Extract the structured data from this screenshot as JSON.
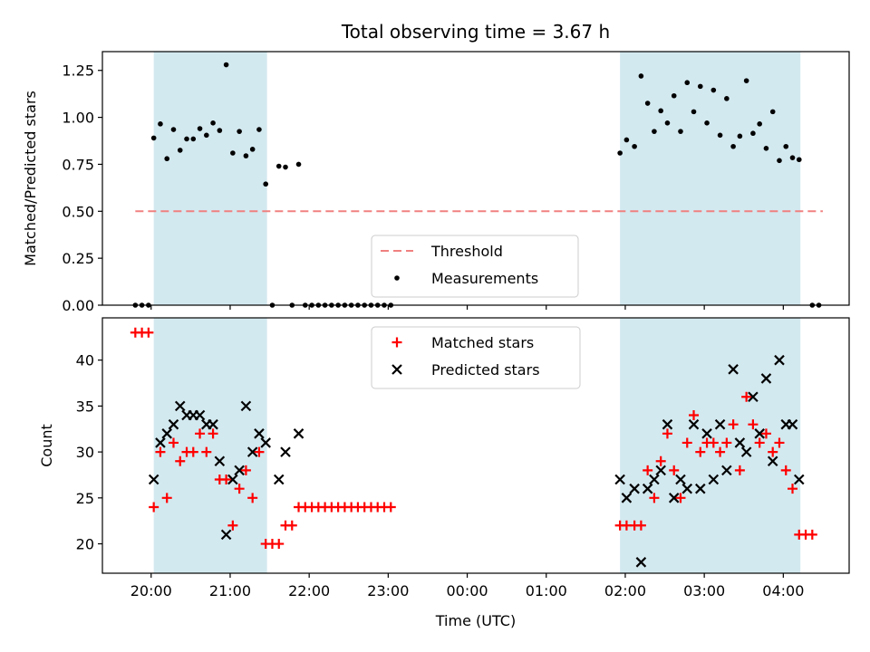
{
  "chart_data": [
    {
      "type": "scatter",
      "title": "Total observing time = 3.67 h",
      "ylabel": "Matched/Predicted stars",
      "xlabel": "",
      "ylim": [
        0,
        1.35
      ],
      "xlim": [
        "19:23",
        "04:50"
      ],
      "yticks": [
        "0.00",
        "0.25",
        "0.50",
        "0.75",
        "1.00",
        "1.25"
      ],
      "xtick_labels_visible": false,
      "shaded_intervals": [
        [
          "20:02",
          "21:28"
        ],
        [
          "01:56",
          "04:13"
        ]
      ],
      "shade_color": "#d3e9f0",
      "threshold": {
        "name": "Threshold",
        "value": 0.5,
        "x_range": [
          "19:48",
          "04:30"
        ],
        "color": "#f08080",
        "style": "dashed"
      },
      "series": [
        {
          "name": "Measurements",
          "color": "#000000",
          "marker": "dot",
          "points": [
            [
              "19:48",
              0.0
            ],
            [
              "19:53",
              0.0
            ],
            [
              "19:58",
              0.0
            ],
            [
              "20:02",
              0.89
            ],
            [
              "20:07",
              0.965
            ],
            [
              "20:12",
              0.78
            ],
            [
              "20:17",
              0.935
            ],
            [
              "20:22",
              0.825
            ],
            [
              "20:27",
              0.885
            ],
            [
              "20:32",
              0.885
            ],
            [
              "20:37",
              0.94
            ],
            [
              "20:42",
              0.905
            ],
            [
              "20:47",
              0.97
            ],
            [
              "20:52",
              0.93
            ],
            [
              "20:57",
              1.28
            ],
            [
              "21:02",
              0.81
            ],
            [
              "21:07",
              0.925
            ],
            [
              "21:12",
              0.795
            ],
            [
              "21:17",
              0.83
            ],
            [
              "21:22",
              0.935
            ],
            [
              "21:27",
              0.645
            ],
            [
              "21:32",
              0.0
            ],
            [
              "21:37",
              0.74
            ],
            [
              "21:42",
              0.735
            ],
            [
              "21:47",
              0.0
            ],
            [
              "21:52",
              0.75
            ],
            [
              "21:57",
              0.0
            ],
            [
              "22:02",
              0.0
            ],
            [
              "22:07",
              0.0
            ],
            [
              "22:12",
              0.0
            ],
            [
              "22:17",
              0.0
            ],
            [
              "22:22",
              0.0
            ],
            [
              "22:27",
              0.0
            ],
            [
              "22:32",
              0.0
            ],
            [
              "22:37",
              0.0
            ],
            [
              "22:42",
              0.0
            ],
            [
              "22:47",
              0.0
            ],
            [
              "22:52",
              0.0
            ],
            [
              "22:57",
              0.0
            ],
            [
              "23:02",
              0.0
            ],
            [
              "01:56",
              0.81
            ],
            [
              "02:01",
              0.88
            ],
            [
              "02:07",
              0.845
            ],
            [
              "02:12",
              1.22
            ],
            [
              "02:17",
              1.075
            ],
            [
              "02:22",
              0.925
            ],
            [
              "02:27",
              1.035
            ],
            [
              "02:32",
              0.97
            ],
            [
              "02:37",
              1.115
            ],
            [
              "02:42",
              0.925
            ],
            [
              "02:47",
              1.185
            ],
            [
              "02:52",
              1.03
            ],
            [
              "02:57",
              1.165
            ],
            [
              "03:02",
              0.97
            ],
            [
              "03:07",
              1.145
            ],
            [
              "03:12",
              0.905
            ],
            [
              "03:17",
              1.1
            ],
            [
              "03:22",
              0.845
            ],
            [
              "03:27",
              0.9
            ],
            [
              "03:32",
              1.195
            ],
            [
              "03:37",
              0.915
            ],
            [
              "03:42",
              0.965
            ],
            [
              "03:47",
              0.835
            ],
            [
              "03:52",
              1.03
            ],
            [
              "03:57",
              0.77
            ],
            [
              "04:02",
              0.845
            ],
            [
              "04:07",
              0.785
            ],
            [
              "04:12",
              0.775
            ],
            [
              "04:22",
              0.0
            ],
            [
              "04:27",
              0.0
            ]
          ]
        }
      ],
      "legend": {
        "position": "lower center",
        "entries": [
          "Threshold",
          "Measurements"
        ]
      }
    },
    {
      "type": "scatter",
      "title": "",
      "ylabel": "Count",
      "xlabel": "Time (UTC)",
      "ylim": [
        16.8,
        44.6
      ],
      "xlim": [
        "19:23",
        "04:50"
      ],
      "yticks": [
        "20",
        "25",
        "30",
        "35",
        "40"
      ],
      "xticks": [
        "20:00",
        "21:00",
        "22:00",
        "23:00",
        "00:00",
        "01:00",
        "02:00",
        "03:00",
        "04:00"
      ],
      "shaded_intervals": [
        [
          "20:02",
          "21:28"
        ],
        [
          "01:56",
          "04:13"
        ]
      ],
      "shade_color": "#d3e9f0",
      "series": [
        {
          "name": "Matched stars",
          "color": "#ff0000",
          "marker": "plus",
          "points": [
            [
              "19:48",
              43
            ],
            [
              "19:53",
              43
            ],
            [
              "19:58",
              43
            ],
            [
              "20:02",
              24
            ],
            [
              "20:07",
              30
            ],
            [
              "20:12",
              25
            ],
            [
              "20:17",
              31
            ],
            [
              "20:22",
              29
            ],
            [
              "20:27",
              30
            ],
            [
              "20:32",
              30
            ],
            [
              "20:37",
              32
            ],
            [
              "20:42",
              30
            ],
            [
              "20:47",
              32
            ],
            [
              "20:52",
              27
            ],
            [
              "20:57",
              27
            ],
            [
              "21:02",
              22
            ],
            [
              "21:07",
              26
            ],
            [
              "21:12",
              28
            ],
            [
              "21:17",
              25
            ],
            [
              "21:22",
              30
            ],
            [
              "21:27",
              20
            ],
            [
              "21:32",
              20
            ],
            [
              "21:37",
              20
            ],
            [
              "21:42",
              22
            ],
            [
              "21:47",
              22
            ],
            [
              "21:52",
              24
            ],
            [
              "21:57",
              24
            ],
            [
              "22:02",
              24
            ],
            [
              "22:07",
              24
            ],
            [
              "22:12",
              24
            ],
            [
              "22:17",
              24
            ],
            [
              "22:22",
              24
            ],
            [
              "22:27",
              24
            ],
            [
              "22:32",
              24
            ],
            [
              "22:37",
              24
            ],
            [
              "22:42",
              24
            ],
            [
              "22:47",
              24
            ],
            [
              "22:52",
              24
            ],
            [
              "22:57",
              24
            ],
            [
              "23:02",
              24
            ],
            [
              "01:56",
              22
            ],
            [
              "02:01",
              22
            ],
            [
              "02:07",
              22
            ],
            [
              "02:12",
              22
            ],
            [
              "02:17",
              28
            ],
            [
              "02:22",
              25
            ],
            [
              "02:27",
              29
            ],
            [
              "02:32",
              32
            ],
            [
              "02:37",
              28
            ],
            [
              "02:42",
              25
            ],
            [
              "02:47",
              31
            ],
            [
              "02:52",
              34
            ],
            [
              "02:57",
              30
            ],
            [
              "03:02",
              31
            ],
            [
              "03:07",
              31
            ],
            [
              "03:12",
              30
            ],
            [
              "03:17",
              31
            ],
            [
              "03:22",
              33
            ],
            [
              "03:27",
              28
            ],
            [
              "03:32",
              36
            ],
            [
              "03:37",
              33
            ],
            [
              "03:42",
              31
            ],
            [
              "03:47",
              32
            ],
            [
              "03:52",
              30
            ],
            [
              "03:57",
              31
            ],
            [
              "04:02",
              28
            ],
            [
              "04:07",
              26
            ],
            [
              "04:12",
              21
            ],
            [
              "04:17",
              21
            ],
            [
              "04:22",
              21
            ]
          ]
        },
        {
          "name": "Predicted stars",
          "color": "#000000",
          "marker": "x",
          "points": [
            [
              "20:02",
              27
            ],
            [
              "20:07",
              31
            ],
            [
              "20:12",
              32
            ],
            [
              "20:17",
              33
            ],
            [
              "20:22",
              35
            ],
            [
              "20:27",
              34
            ],
            [
              "20:32",
              34
            ],
            [
              "20:37",
              34
            ],
            [
              "20:42",
              33
            ],
            [
              "20:47",
              33
            ],
            [
              "20:52",
              29
            ],
            [
              "20:57",
              21
            ],
            [
              "21:02",
              27
            ],
            [
              "21:07",
              28
            ],
            [
              "21:12",
              35
            ],
            [
              "21:17",
              30
            ],
            [
              "21:22",
              32
            ],
            [
              "21:27",
              31
            ],
            [
              "21:37",
              27
            ],
            [
              "21:42",
              30
            ],
            [
              "21:52",
              32
            ],
            [
              "01:56",
              27
            ],
            [
              "02:01",
              25
            ],
            [
              "02:07",
              26
            ],
            [
              "02:12",
              18
            ],
            [
              "02:17",
              26
            ],
            [
              "02:22",
              27
            ],
            [
              "02:27",
              28
            ],
            [
              "02:32",
              33
            ],
            [
              "02:37",
              25
            ],
            [
              "02:42",
              27
            ],
            [
              "02:47",
              26
            ],
            [
              "02:52",
              33
            ],
            [
              "02:57",
              26
            ],
            [
              "03:02",
              32
            ],
            [
              "03:07",
              27
            ],
            [
              "03:12",
              33
            ],
            [
              "03:17",
              28
            ],
            [
              "03:22",
              39
            ],
            [
              "03:27",
              31
            ],
            [
              "03:32",
              30
            ],
            [
              "03:37",
              36
            ],
            [
              "03:42",
              32
            ],
            [
              "03:47",
              38
            ],
            [
              "03:52",
              29
            ],
            [
              "03:57",
              40
            ],
            [
              "04:02",
              33
            ],
            [
              "04:07",
              33
            ],
            [
              "04:12",
              27
            ]
          ]
        }
      ],
      "legend": {
        "position": "upper center",
        "entries": [
          "Matched stars",
          "Predicted stars"
        ]
      }
    }
  ]
}
